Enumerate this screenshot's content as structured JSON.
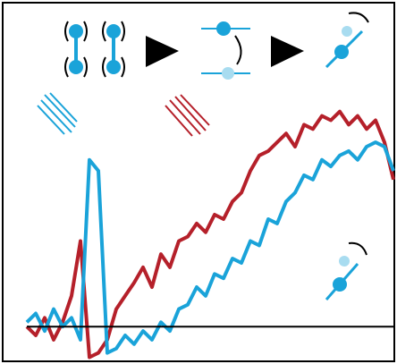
{
  "chart_data": {
    "type": "line",
    "x": [
      0,
      10,
      20,
      30,
      40,
      50,
      60,
      70,
      80,
      90,
      100,
      110,
      120,
      130,
      140,
      150,
      160,
      170,
      180,
      190,
      200,
      210,
      220,
      230,
      240,
      250,
      260,
      270,
      280,
      290,
      300,
      310,
      320,
      330,
      340,
      350,
      360,
      370,
      380,
      390,
      400,
      410
    ],
    "xlim": [
      0,
      410
    ],
    "ylim": [
      -15,
      115
    ],
    "series": [
      {
        "color": "#b5202a",
        "values": [
          0,
          -4,
          4,
          -6,
          2,
          14,
          39,
          -14,
          -12,
          -6,
          8,
          14,
          20,
          27,
          18,
          33,
          27,
          39,
          41,
          47,
          43,
          51,
          49,
          57,
          61,
          71,
          78,
          80,
          84,
          88,
          82,
          92,
          90,
          96,
          94,
          98,
          92,
          96,
          90,
          94,
          84,
          67
        ]
      },
      {
        "color": "#1aa3d9",
        "values": [
          2,
          6,
          -2,
          8,
          0,
          4,
          -6,
          76,
          71,
          -12,
          -10,
          -4,
          -8,
          -2,
          -6,
          2,
          -2,
          8,
          10,
          18,
          14,
          24,
          22,
          31,
          29,
          39,
          37,
          49,
          47,
          57,
          61,
          69,
          67,
          76,
          73,
          78,
          80,
          76,
          82,
          84,
          82,
          71
        ]
      }
    ]
  }
}
